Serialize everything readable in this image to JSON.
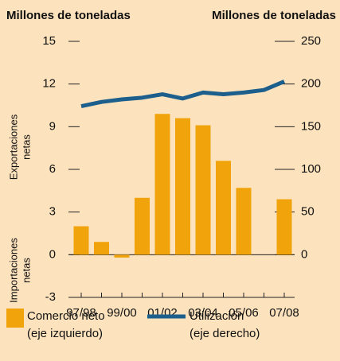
{
  "chart_data": {
    "type": "bar_line",
    "y_label_left": "Millones de toneladas",
    "y_label_right": "Millones de toneladas",
    "side_label_top": [
      "Exportaciones",
      "netas"
    ],
    "side_label_bottom": [
      "Importaciones",
      "netas"
    ],
    "categories": [
      "97/98",
      null,
      "99/00",
      null,
      "01/02",
      null,
      "03/04",
      null,
      "05/06",
      null,
      "07/08"
    ],
    "series": [
      {
        "name": "Comercio neto",
        "note": "(eje izquierdo)",
        "color": "#f0a30a",
        "kind": "bar",
        "values": [
          2.0,
          0.9,
          -0.2,
          4.0,
          9.9,
          9.6,
          9.1,
          6.6,
          4.7,
          null,
          3.9
        ]
      },
      {
        "name": "Utilización",
        "note": "(eje derecho)",
        "color": "#1c5f8c",
        "kind": "line",
        "axis": "y2",
        "values": [
          174,
          179,
          182,
          184,
          188,
          183,
          190,
          188,
          190,
          193,
          203
        ]
      }
    ],
    "ylim": [
      -3,
      15
    ],
    "yticks": [
      -3,
      0,
      3,
      6,
      9,
      12,
      15
    ],
    "y2lim": [
      -50,
      250
    ],
    "y2ticks": [
      0,
      50,
      100,
      150,
      200,
      250
    ]
  }
}
